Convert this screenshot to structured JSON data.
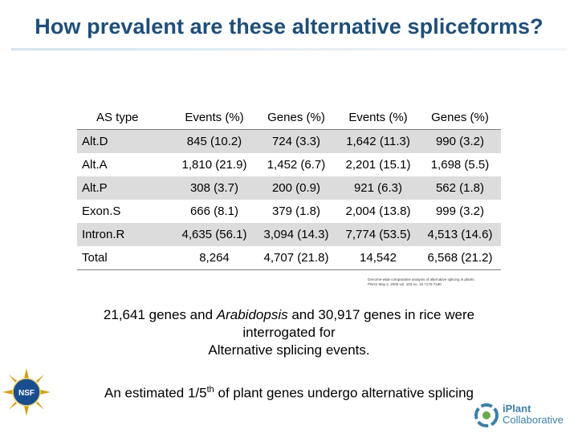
{
  "title": "How prevalent are these alternative spliceforms?",
  "table": {
    "headers": [
      "AS type",
      "Events (%)",
      "Genes (%)",
      "Events (%)",
      "Genes (%)"
    ],
    "rows": [
      [
        "Alt.D",
        "845 (10.2)",
        "724 (3.3)",
        "1,642 (11.3)",
        "990 (3.2)"
      ],
      [
        "Alt.A",
        "1,810 (21.9)",
        "1,452 (6.7)",
        "2,201 (15.1)",
        "1,698 (5.5)"
      ],
      [
        "Alt.P",
        "308 (3.7)",
        "200 (0.9)",
        "921 (6.3)",
        "562 (1.8)"
      ],
      [
        "Exon.S",
        "666 (8.1)",
        "379 (1.8)",
        "2,004 (13.8)",
        "999 (3.2)"
      ],
      [
        "Intron.R",
        "4,635 (56.1)",
        "3,094 (14.3)",
        "7,774 (53.5)",
        "4,513 (14.6)"
      ],
      [
        "Total",
        "8,264",
        "4,707 (21.8)",
        "14,542",
        "6,568 (21.2)"
      ]
    ]
  },
  "citation": {
    "line1": "Genome-wide comparative analysis of alternative splicing in plants",
    "line2": "PNAS May 2, 2006 vol. 103 no. 18 7175-7180"
  },
  "body": {
    "line1_a": "21,641 genes and ",
    "line1_italic": "Arabidopsis",
    "line1_b": " and 30,917 genes in rice were",
    "line2": "interrogated for",
    "line3": "Alternative splicing events."
  },
  "bottom": {
    "pre": "An estimated 1/5",
    "sup": "th",
    "post": " of plant genes undergo alternative splicing"
  },
  "logos": {
    "nsf_text": "NSF",
    "iplant_line1": "iPlant",
    "iplant_line2": "Collaborative",
    "nsf_color": "#1a4f8f",
    "iplant_color": "#3c7fa8"
  }
}
